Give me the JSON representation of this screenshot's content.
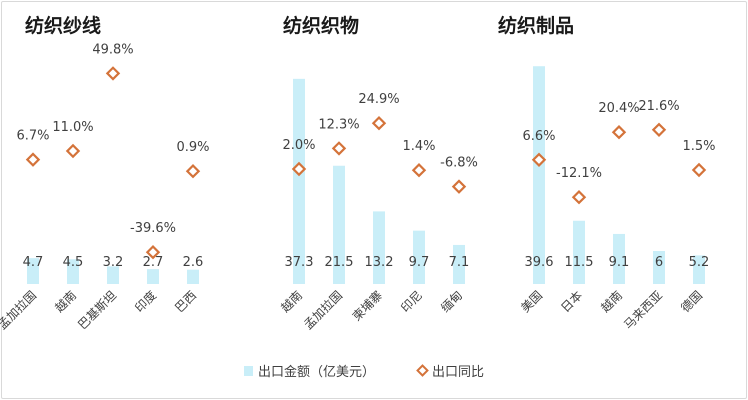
{
  "chart_data": {
    "type": "bar",
    "legend": {
      "placement": "bottom"
    },
    "series_names": [
      "出口金额（亿美元）",
      "出口同比"
    ],
    "colors": {
      "bar": "#c9eef8",
      "marker_fill": "#ffffff",
      "marker_stroke": "#d4733a"
    },
    "panels": [
      {
        "title": "纺织纱线",
        "categories": [
          "孟加拉国",
          "越南",
          "巴基斯坦",
          "印度",
          "巴西"
        ],
        "values": [
          4.7,
          4.5,
          3.2,
          2.7,
          2.6
        ],
        "value_labels": [
          "4.7",
          "4.5",
          "3.2",
          "2.7",
          "2.6"
        ],
        "yoy": [
          6.7,
          11.0,
          49.8,
          -39.6,
          0.9
        ],
        "yoy_labels": [
          "6.7%",
          "11.0%",
          "49.8%",
          "-39.6%",
          "0.9%"
        ]
      },
      {
        "title": "纺织织物",
        "categories": [
          "越南",
          "孟加拉国",
          "柬埔寨",
          "印尼",
          "缅甸"
        ],
        "values": [
          37.3,
          21.5,
          13.2,
          9.7,
          7.1
        ],
        "value_labels": [
          "37.3",
          "21.5",
          "13.2",
          "9.7",
          "7.1"
        ],
        "yoy": [
          2.0,
          12.3,
          24.9,
          1.4,
          -6.8
        ],
        "yoy_labels": [
          "2.0%",
          "12.3%",
          "24.9%",
          "1.4%",
          "-6.8%"
        ]
      },
      {
        "title": "纺织制品",
        "categories": [
          "美国",
          "日本",
          "越南",
          "马来西亚",
          "德国"
        ],
        "values": [
          39.6,
          11.5,
          9.1,
          6,
          5.2
        ],
        "value_labels": [
          "39.6",
          "11.5",
          "9.1",
          "6",
          "5.2"
        ],
        "yoy": [
          6.6,
          -12.1,
          20.4,
          21.6,
          1.5
        ],
        "yoy_labels": [
          "6.6%",
          "-12.1%",
          "20.4%",
          "21.6%",
          "1.5%"
        ]
      }
    ]
  }
}
